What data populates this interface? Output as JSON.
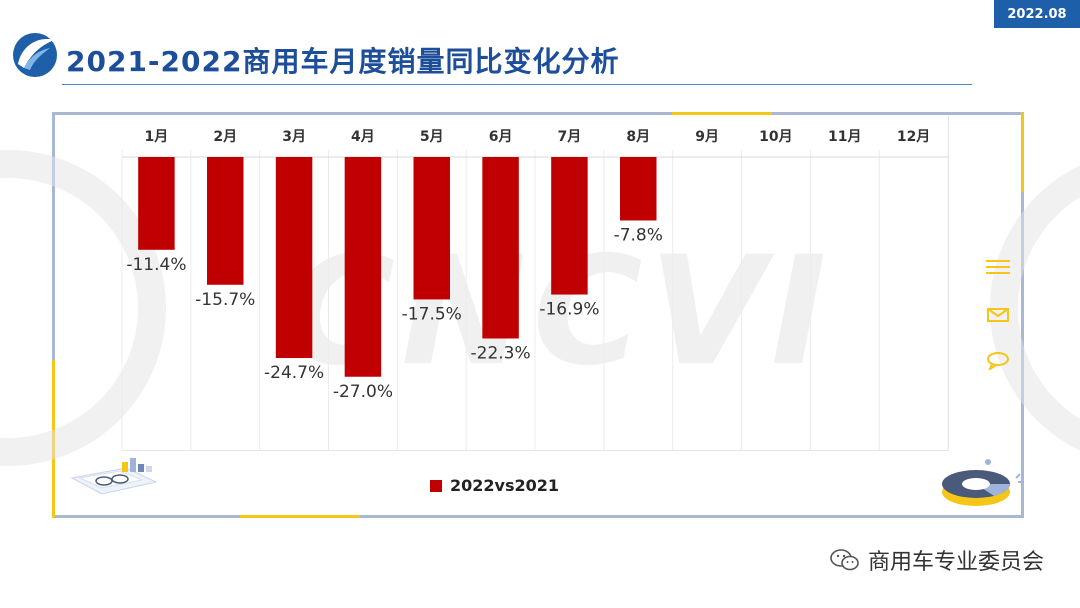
{
  "date_badge": "2022.08",
  "title": "2021-2022商用车月度销量同比变化分析",
  "watermark": "CNCVI",
  "footer": {
    "account_name": "商用车专业委员会"
  },
  "colors": {
    "bar": "#c00000",
    "title": "#1d4e9a",
    "accent": "#f5c518",
    "badge": "#1d5fa8"
  },
  "chart_data": {
    "type": "bar",
    "categories": [
      "1月",
      "2月",
      "3月",
      "4月",
      "5月",
      "6月",
      "7月",
      "8月",
      "9月",
      "10月",
      "11月",
      "12月"
    ],
    "series": [
      {
        "name": "2022vs2021",
        "values": [
          -11.4,
          -15.7,
          -24.7,
          -27.0,
          -17.5,
          -22.3,
          -16.9,
          -7.8,
          null,
          null,
          null,
          null
        ]
      }
    ],
    "data_labels": [
      "-11.4%",
      "-15.7%",
      "-24.7%",
      "-27.0%",
      "-17.5%",
      "-22.3%",
      "-16.9%",
      "-7.8%"
    ],
    "ylim": [
      -36,
      0
    ],
    "category_axis_position": "top",
    "legend_position": "bottom",
    "grid": "vertical",
    "xlabel": "",
    "ylabel": ""
  }
}
